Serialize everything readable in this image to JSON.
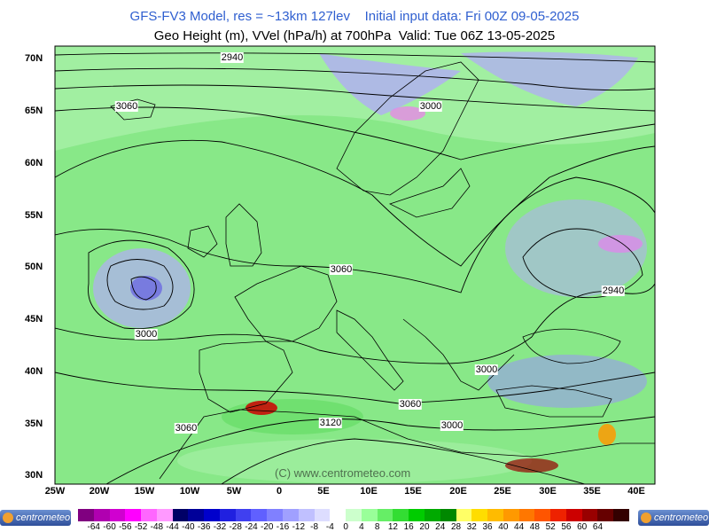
{
  "header": {
    "line1": "GFS-FV3 Model, res = ~13km 127lev    Initial input data: Fri 00Z 09-05-2025",
    "line2": "Geo Height (m), VVel (hPa/h) at 700hPa  Valid: Tue 06Z 13-05-2025"
  },
  "map": {
    "lat_labels": [
      "70N",
      "65N",
      "60N",
      "55N",
      "50N",
      "45N",
      "40N",
      "35N",
      "30N"
    ],
    "lon_labels": [
      "25W",
      "20W",
      "15W",
      "10W",
      "5W",
      "0",
      "5E",
      "10E",
      "15E",
      "20E",
      "25E",
      "30E",
      "35E",
      "40E"
    ],
    "contour_labels": [
      "2940",
      "3060",
      "3000",
      "3060",
      "3000",
      "2940",
      "3000",
      "3060",
      "3120",
      "3060",
      "3000"
    ],
    "watermark": "(C) www.centrometeo.com",
    "colors": {
      "green": "#66dd66",
      "lightgreen": "#a8f0a8",
      "lavender": "#b0b0f0",
      "blue": "#6a6ae0",
      "frame": "#000000"
    }
  },
  "legend": {
    "colors": [
      "#800080",
      "#b000b0",
      "#d000d0",
      "#ff00ff",
      "#ff66ff",
      "#ff99ff",
      "#000066",
      "#000099",
      "#0000cc",
      "#2020e0",
      "#4040f0",
      "#6060ff",
      "#8080ff",
      "#a0a0ff",
      "#c0c0ff",
      "#ddddff",
      "#ffffff",
      "#ccffcc",
      "#99ff99",
      "#66ee66",
      "#33dd33",
      "#00cc00",
      "#00aa00",
      "#008800",
      "#ffff66",
      "#ffdd00",
      "#ffbb00",
      "#ff9900",
      "#ff7700",
      "#ff5500",
      "#ee2200",
      "#cc0000",
      "#990000",
      "#660000",
      "#330000"
    ],
    "tick_labels": [
      "-64",
      "-60",
      "-56",
      "-52",
      "-48",
      "-44",
      "-40",
      "-36",
      "-32",
      "-28",
      "-24",
      "-20",
      "-16",
      "-12",
      "-8",
      "-4",
      "0",
      "4",
      "8",
      "12",
      "16",
      "20",
      "24",
      "28",
      "32",
      "36",
      "40",
      "44",
      "48",
      "52",
      "56",
      "60",
      "64"
    ],
    "logo_left": "centrometeo",
    "logo_right": "centrometeo"
  }
}
